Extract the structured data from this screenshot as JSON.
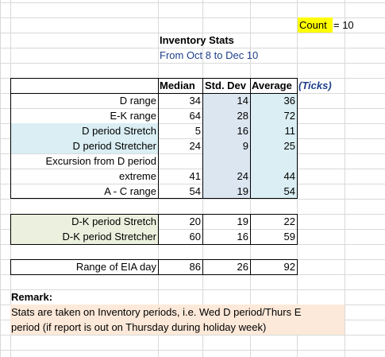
{
  "count": {
    "label": "Count",
    "value": "= 10"
  },
  "title": "Inventory Stats",
  "subtitle": "From Oct 8 to Dec 10",
  "headers": {
    "median": "Median",
    "std": "Std. Dev",
    "average": "Average",
    "ticks": "(Ticks)"
  },
  "rows": [
    {
      "label": "D range",
      "median": "34",
      "std": "14",
      "average": "36"
    },
    {
      "label": "E-K range",
      "median": "64",
      "std": "28",
      "average": "72"
    },
    {
      "label": "D period Stretch",
      "median": "5",
      "std": "16",
      "average": "11"
    },
    {
      "label": "D period Stretcher",
      "median": "24",
      "std": "9",
      "average": "25"
    },
    {
      "label": "Excursion from D period",
      "median": "",
      "std": "",
      "average": ""
    },
    {
      "label": "extreme",
      "median": "41",
      "std": "24",
      "average": "44"
    },
    {
      "label": "A - C range",
      "median": "54",
      "std": "19",
      "average": "54"
    }
  ],
  "dk_rows": [
    {
      "label": "D-K period Stretch",
      "median": "20",
      "std": "19",
      "average": "22"
    },
    {
      "label": "D-K period Stretcher",
      "median": "60",
      "std": "16",
      "average": "59"
    }
  ],
  "eia_row": {
    "label": "Range of EIA day",
    "median": "86",
    "std": "26",
    "average": "92"
  },
  "remark": {
    "title": "Remark:",
    "line1": "Stats are taken on Inventory periods, i.e. Wed D period/Thurs E",
    "line2": "period (if report is out on Thursday during holiday week)"
  },
  "colors": {
    "count_highlight": "#ffff00",
    "light_blue": "#daeef3",
    "std_col_blue": "#dce6f1",
    "dk_green": "#ebf1de",
    "remark_peach": "#fde9d9"
  }
}
